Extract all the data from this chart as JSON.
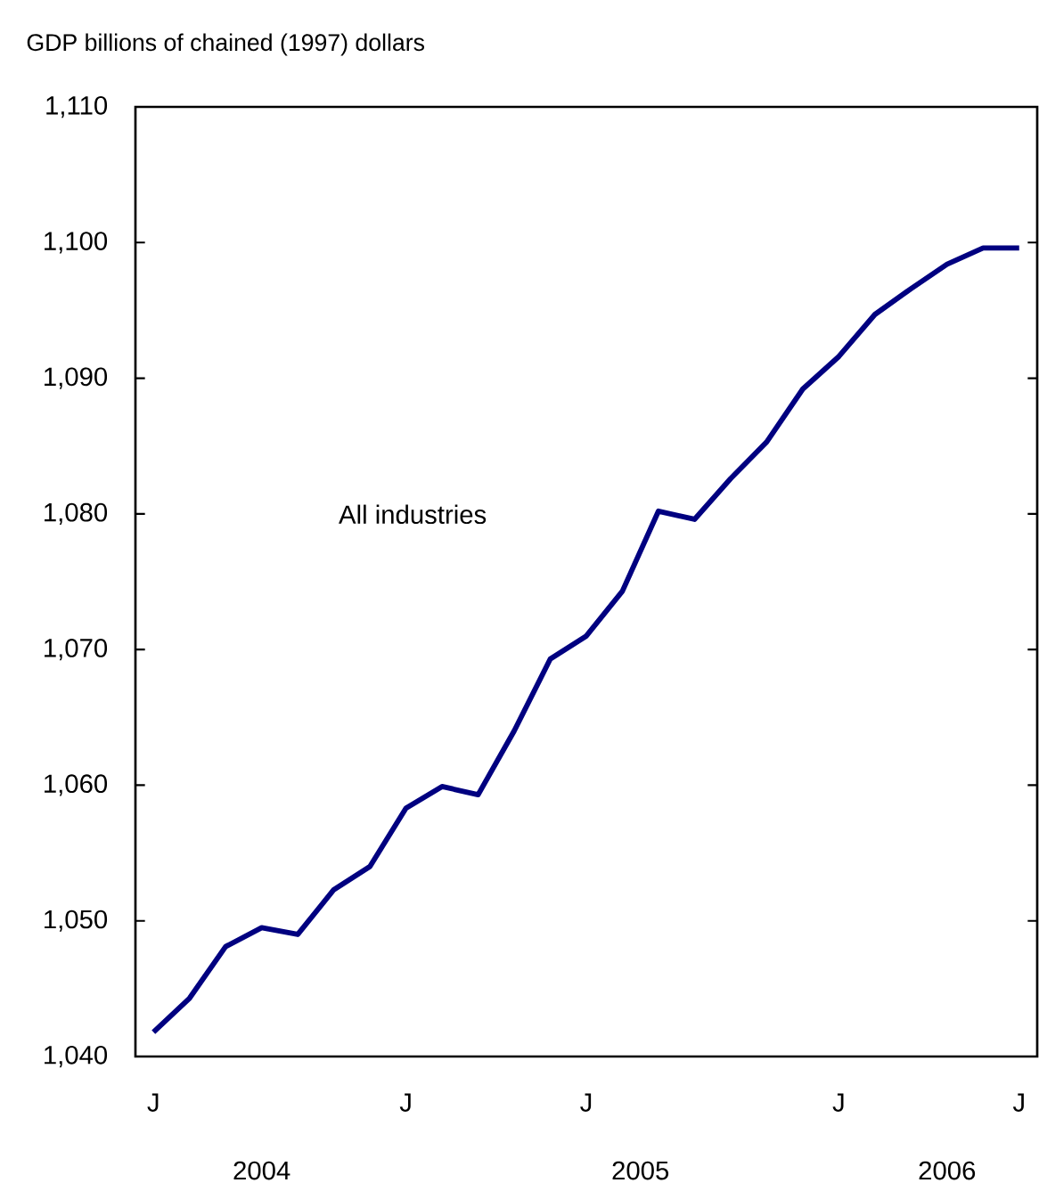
{
  "chart_data": {
    "type": "line",
    "ylabel": "GDP billions of chained (1997) dollars",
    "categories": [
      "J",
      null,
      null,
      null,
      null,
      null,
      null,
      "J",
      null,
      null,
      null,
      null,
      "J",
      null,
      null,
      null,
      null,
      null,
      null,
      "J",
      null,
      null,
      null,
      null,
      "J"
    ],
    "series": [
      {
        "name": "All industries",
        "color": "#000080",
        "values": [
          1041.8,
          1044.3,
          1048.1,
          1049.5,
          1049.0,
          1052.3,
          1054.0,
          1058.3,
          1059.9,
          1059.3,
          1064.0,
          1069.3,
          1071.0,
          1074.3,
          1080.2,
          1079.6,
          1082.6,
          1085.3,
          1089.2,
          1091.6,
          1094.7,
          1096.6,
          1098.4,
          1099.6,
          1099.6
        ]
      }
    ],
    "ylim": [
      1040,
      1110
    ],
    "yticks": [
      {
        "value": 1040,
        "label": "1,040"
      },
      {
        "value": 1050,
        "label": "1,050"
      },
      {
        "value": 1060,
        "label": "1,060"
      },
      {
        "value": 1070,
        "label": "1,070"
      },
      {
        "value": 1080,
        "label": "1,080"
      },
      {
        "value": 1090,
        "label": "1,090"
      },
      {
        "value": 1100,
        "label": "1,100"
      },
      {
        "value": 1110,
        "label": "1,110"
      }
    ],
    "annotations": [
      "2004",
      "2005",
      "2006"
    ],
    "grid": false,
    "legend": false,
    "marker": "none",
    "line_style": "solid"
  }
}
